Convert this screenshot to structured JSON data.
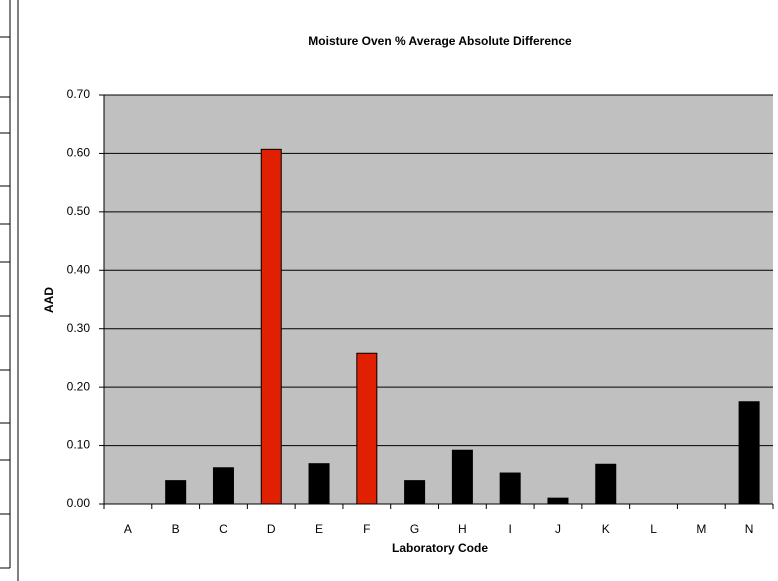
{
  "chart_data": {
    "type": "bar",
    "title": "Moisture Oven % Average Absolute Difference",
    "x_label": "Laboratory Code",
    "y_label": "AAD",
    "categories": [
      "A",
      "B",
      "C",
      "D",
      "E",
      "F",
      "G",
      "H",
      "I",
      "J",
      "K",
      "L",
      "M",
      "N"
    ],
    "values": [
      0,
      0.04,
      0.062,
      0.607,
      0.069,
      0.258,
      0.04,
      0.092,
      0.053,
      0.01,
      0.068,
      0,
      0,
      0.175
    ],
    "colors": [
      "#000000",
      "#000000",
      "#000000",
      "#e02000",
      "#000000",
      "#e02000",
      "#000000",
      "#000000",
      "#000000",
      "#000000",
      "#000000",
      "#000000",
      "#000000",
      "#000000"
    ],
    "ylim": [
      0,
      0.7
    ],
    "yticks": [
      {
        "value": 0,
        "label": "0.00"
      },
      {
        "value": 0.1,
        "label": "0.10"
      },
      {
        "value": 0.2,
        "label": "0.20"
      },
      {
        "value": 0.3,
        "label": "0.30"
      },
      {
        "value": 0.4,
        "label": "0.40"
      },
      {
        "value": 0.5,
        "label": "0.50"
      },
      {
        "value": 0.6,
        "label": "0.60"
      },
      {
        "value": 0.7,
        "label": "0.70"
      }
    ],
    "grid": true,
    "plot_background": "#c0c0c0"
  }
}
